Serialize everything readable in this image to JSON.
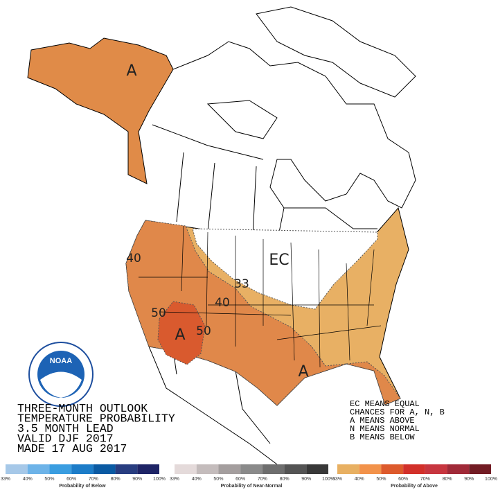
{
  "outlook": {
    "lines": [
      "THREE-MONTH OUTLOOK",
      "TEMPERATURE PROBABILITY",
      "3.5 MONTH LEAD",
      "VALID DJF 2017",
      "MADE 17 AUG 2017"
    ]
  },
  "key": {
    "lines": [
      "EC MEANS EQUAL",
      "CHANCES FOR A, N, B",
      "A MEANS ABOVE",
      "N MEANS NORMAL",
      "B MEANS BELOW"
    ]
  },
  "logo": {
    "text": "NOAA"
  },
  "map_labels": [
    "A",
    "EC",
    "40",
    "33",
    "40",
    "50",
    "A",
    "50",
    "A"
  ],
  "scales": [
    {
      "title": "Probability of Below",
      "colors": [
        "#a6c8e8",
        "#6db3e8",
        "#3a9de0",
        "#1c7cc8",
        "#0a5aa3",
        "#283d80",
        "#1e2466"
      ],
      "ticks": [
        "33%",
        "40%",
        "50%",
        "60%",
        "70%",
        "80%",
        "90%",
        "100%"
      ]
    },
    {
      "title": "Probability of Near-Normal",
      "colors": [
        "#e4dada",
        "#c4bcbc",
        "#a49e9e",
        "#8a8a8a",
        "#6e6e6e",
        "#545454",
        "#383838"
      ],
      "ticks": [
        "33%",
        "40%",
        "50%",
        "60%",
        "70%",
        "80%",
        "90%",
        "100%"
      ]
    },
    {
      "title": "Probability of Above",
      "colors": [
        "#e8b062",
        "#f2924a",
        "#dd5a2c",
        "#d2302a",
        "#c7363f",
        "#a02a38",
        "#721c24"
      ],
      "ticks": [
        "33%",
        "40%",
        "50%",
        "60%",
        "70%",
        "80%",
        "90%",
        "100%"
      ]
    }
  ]
}
